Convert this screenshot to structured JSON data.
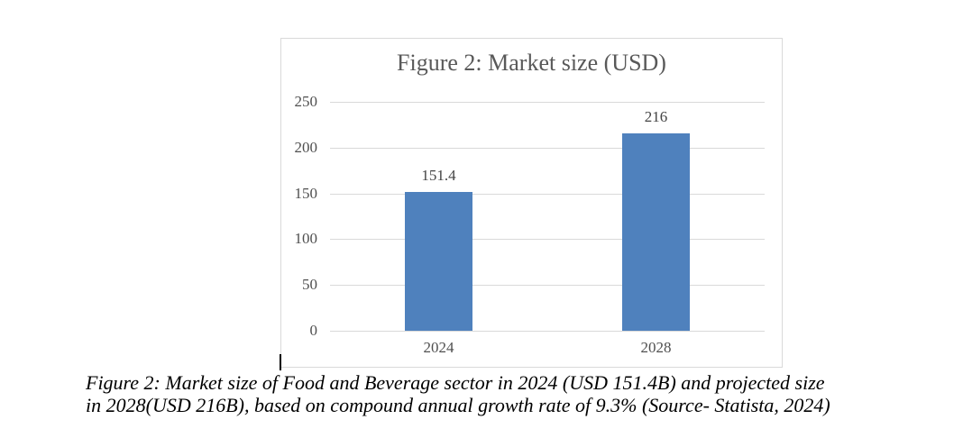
{
  "chart_data": {
    "type": "bar",
    "title": "Figure 2: Market size (USD)",
    "categories": [
      "2024",
      "2028"
    ],
    "values": [
      151.4,
      216
    ],
    "data_labels": [
      "151.4",
      "216"
    ],
    "xlabel": "",
    "ylabel": "",
    "ylim": [
      0,
      250
    ],
    "yticks": [
      0,
      50,
      100,
      150,
      200,
      250
    ],
    "grid": true,
    "legend": false,
    "bar_color": "#4F81BD"
  },
  "caption": {
    "line1": "Figure 2: Market size of Food and Beverage sector in 2024 (USD 151.4B) and projected size",
    "line2": "in 2028(USD 216B), based on compound annual growth rate of 9.3% (Source- Statista, 2024)"
  },
  "colors": {
    "bar": "#4F81BD",
    "gridline": "#D9D9D9",
    "chart_border": "#D9D9D9",
    "title_text": "#595959",
    "tick_text": "#4F4F4F",
    "data_label_text": "#454545",
    "caption_text": "#000000",
    "background": "#FFFFFF"
  }
}
